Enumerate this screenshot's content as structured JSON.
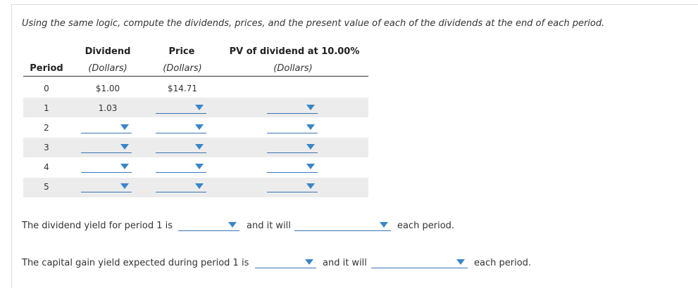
{
  "instruction": "Using the same logic, compute the dividends, prices, and the present value of each of the dividends at the end of each period.",
  "headers": {
    "period": "Period",
    "dividend": "Dividend",
    "dividend_unit": "(Dollars)",
    "price": "Price",
    "price_unit": "(Dollars)",
    "pv": "PV of dividend at 10.00%",
    "pv_unit": "(Dollars)"
  },
  "rows": [
    {
      "period": "0",
      "dividend": "$1.00",
      "price": "$14.71",
      "pv": ""
    },
    {
      "period": "1",
      "dividend": "1.03",
      "price": "",
      "pv": ""
    },
    {
      "period": "2",
      "dividend": "",
      "price": "",
      "pv": ""
    },
    {
      "period": "3",
      "dividend": "",
      "price": "",
      "pv": ""
    },
    {
      "period": "4",
      "dividend": "",
      "price": "",
      "pv": ""
    },
    {
      "period": "5",
      "dividend": "",
      "price": "",
      "pv": ""
    }
  ],
  "sentence1": {
    "prefix": "The dividend yield for period 1 is",
    "middle": "and it will",
    "suffix": "each period."
  },
  "sentence2": {
    "prefix": "The capital gain yield expected during period 1 is",
    "middle": "and it will",
    "suffix": "each period."
  },
  "colors": {
    "dropdown_line": "#3a76b5",
    "dropdown_arrow": "#3a86c8",
    "row_shade": "#ececec"
  }
}
